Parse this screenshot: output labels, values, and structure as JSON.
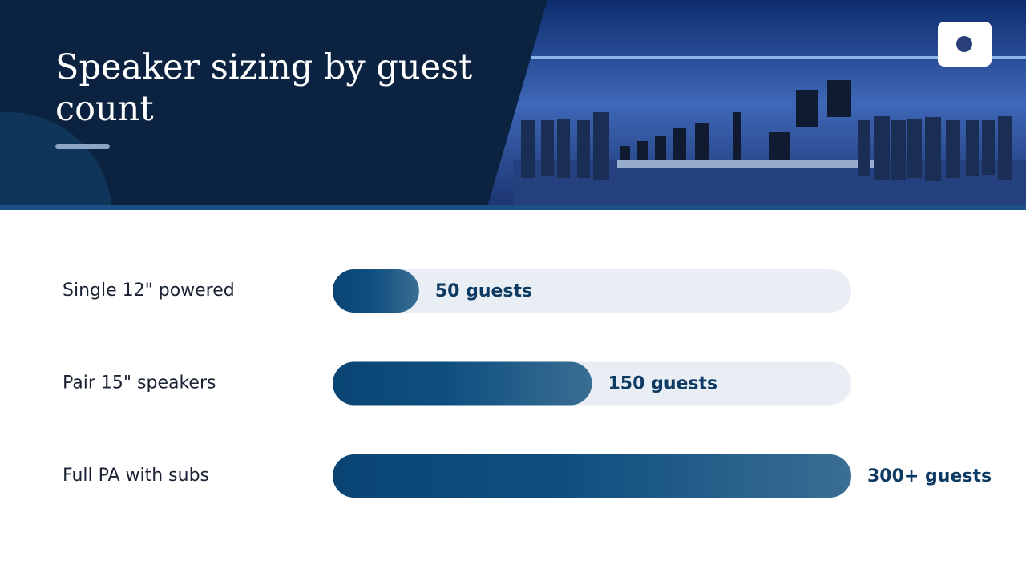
{
  "chart_data": {
    "type": "bar",
    "orientation": "horizontal",
    "title": "Speaker sizing by guest count",
    "categories": [
      "Single 12\" powered",
      "Pair 15\" speakers",
      "Full PA with subs"
    ],
    "values": [
      50,
      150,
      300
    ],
    "value_labels": [
      "50 guests",
      "150 guests",
      "300+ guests"
    ],
    "xlim": [
      0,
      300
    ],
    "color": "#0d4a7a"
  }
}
